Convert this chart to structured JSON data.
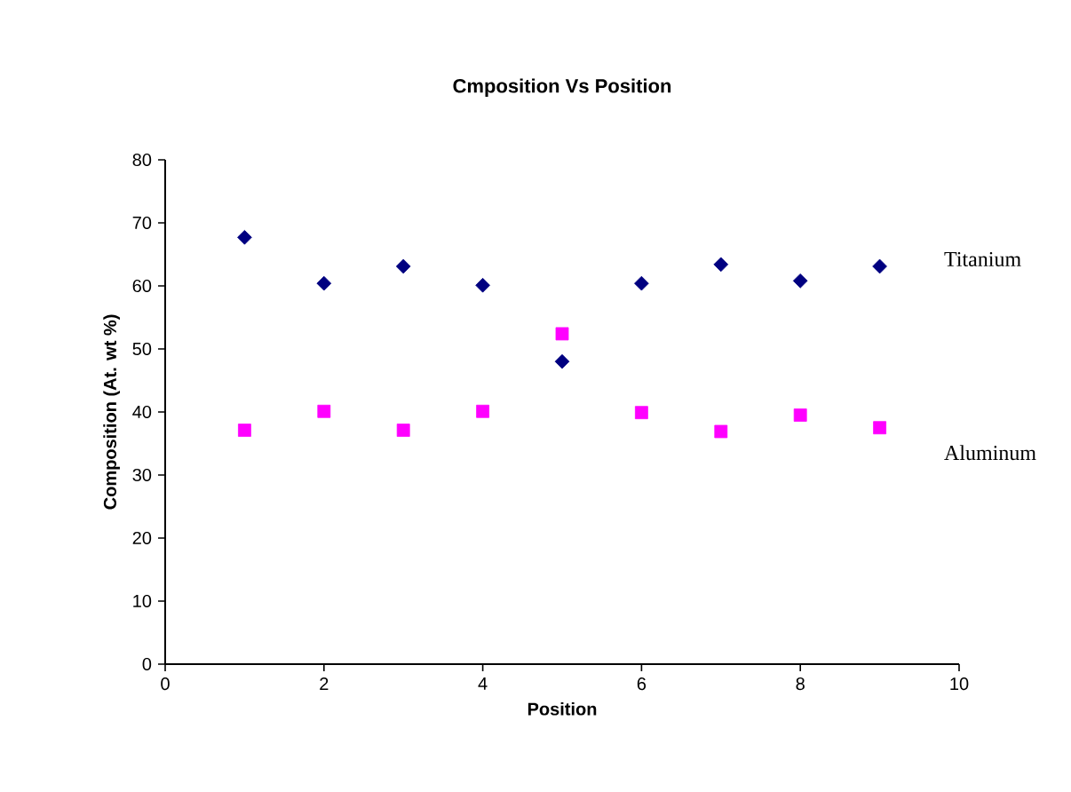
{
  "chart_data": {
    "type": "scatter",
    "title": "Cmposition Vs Position",
    "xlabel": "Position",
    "ylabel": "Composition (At. wt %)",
    "x": [
      1,
      2,
      3,
      4,
      5,
      6,
      7,
      8,
      9
    ],
    "series": [
      {
        "name": "Titanium",
        "color": "#000080",
        "marker": "diamond",
        "values": [
          67.7,
          60.4,
          63.1,
          60.1,
          48.0,
          60.4,
          63.4,
          60.8,
          63.1
        ]
      },
      {
        "name": "Aluminum",
        "color": "#ff00ff",
        "marker": "square",
        "values": [
          37.1,
          40.1,
          37.1,
          40.1,
          52.4,
          39.9,
          36.9,
          39.5,
          37.5
        ]
      }
    ],
    "xlim": [
      0,
      10
    ],
    "ylim": [
      0,
      80
    ],
    "xticks": [
      0,
      2,
      4,
      6,
      8,
      10
    ],
    "yticks": [
      0,
      10,
      20,
      30,
      40,
      50,
      60,
      70,
      80
    ],
    "grid": false
  }
}
